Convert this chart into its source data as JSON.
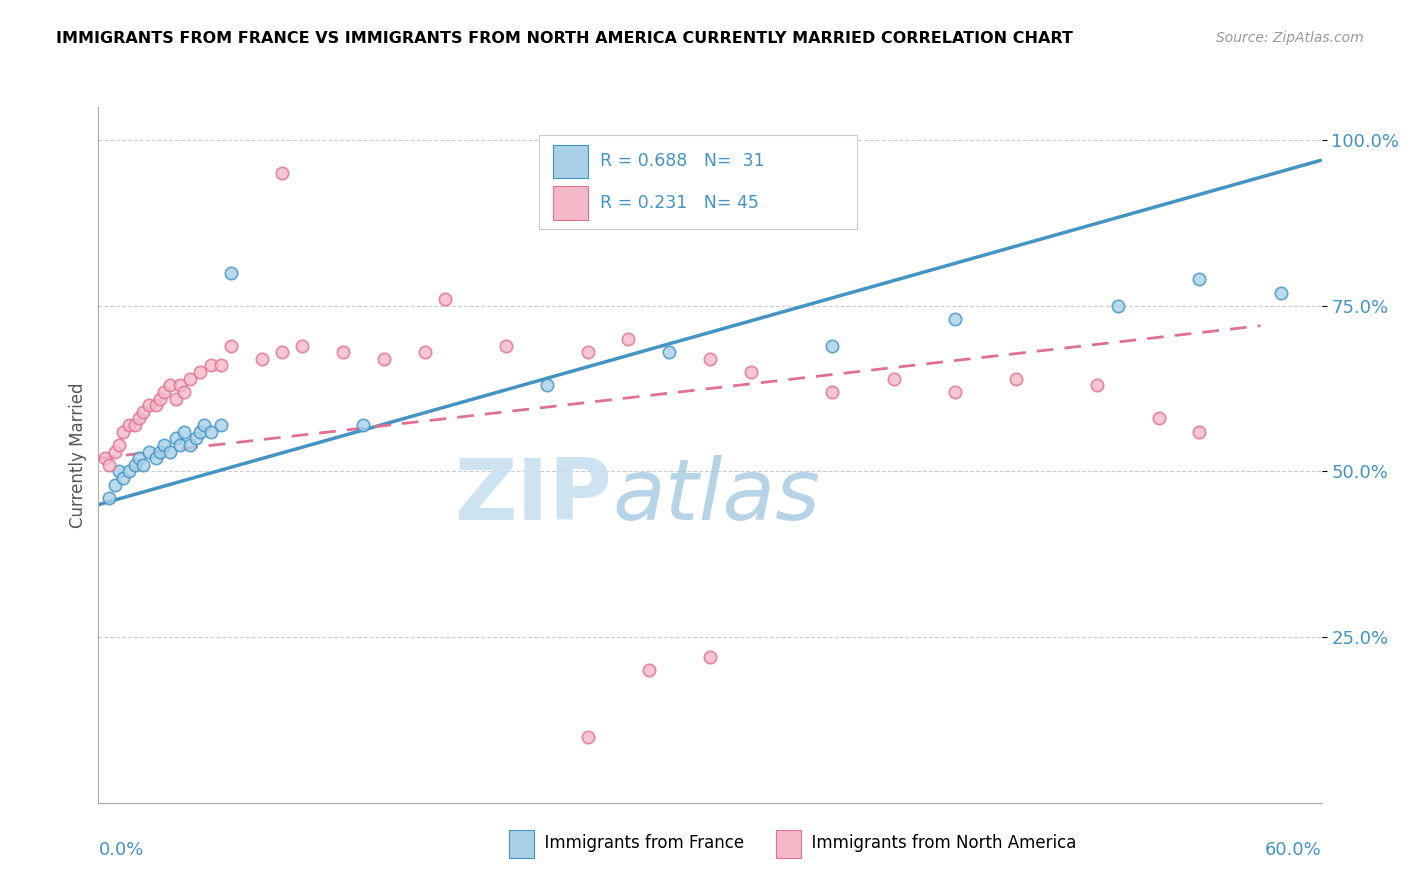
{
  "title": "IMMIGRANTS FROM FRANCE VS IMMIGRANTS FROM NORTH AMERICA CURRENTLY MARRIED CORRELATION CHART",
  "source": "Source: ZipAtlas.com",
  "ylabel": "Currently Married",
  "legend_blue_r": "R = 0.688",
  "legend_blue_n": "N=  31",
  "legend_pink_r": "R = 0.231",
  "legend_pink_n": "N= 45",
  "legend_label_blue": "Immigrants from France",
  "legend_label_pink": "Immigrants from North America",
  "blue_color": "#a8d0e8",
  "pink_color": "#f4b8c8",
  "line_blue": "#4393c3",
  "line_pink": "#e07090",
  "text_blue": "#4393c3",
  "watermark_zip": "ZIP",
  "watermark_atlas": "atlas",
  "blue_scatter_x": [
    0.005,
    0.008,
    0.01,
    0.012,
    0.015,
    0.018,
    0.02,
    0.022,
    0.025,
    0.028,
    0.03,
    0.032,
    0.035,
    0.038,
    0.04,
    0.042,
    0.045,
    0.048,
    0.05,
    0.052,
    0.055,
    0.06,
    0.065,
    0.13,
    0.22,
    0.28,
    0.36,
    0.42,
    0.5,
    0.54,
    0.58
  ],
  "blue_scatter_y": [
    0.46,
    0.48,
    0.5,
    0.49,
    0.5,
    0.51,
    0.52,
    0.51,
    0.53,
    0.52,
    0.53,
    0.54,
    0.53,
    0.55,
    0.54,
    0.56,
    0.54,
    0.55,
    0.56,
    0.57,
    0.56,
    0.57,
    0.8,
    0.57,
    0.63,
    0.68,
    0.69,
    0.73,
    0.75,
    0.79,
    0.77
  ],
  "pink_scatter_x": [
    0.003,
    0.005,
    0.008,
    0.01,
    0.012,
    0.015,
    0.018,
    0.02,
    0.022,
    0.025,
    0.028,
    0.03,
    0.032,
    0.035,
    0.038,
    0.04,
    0.042,
    0.045,
    0.05,
    0.055,
    0.06,
    0.065,
    0.08,
    0.09,
    0.1,
    0.12,
    0.14,
    0.16,
    0.17,
    0.2,
    0.24,
    0.26,
    0.3,
    0.32,
    0.36,
    0.39,
    0.42,
    0.45,
    0.49,
    0.52,
    0.54,
    0.09,
    0.27,
    0.3,
    0.24
  ],
  "pink_scatter_y": [
    0.52,
    0.51,
    0.53,
    0.54,
    0.56,
    0.57,
    0.57,
    0.58,
    0.59,
    0.6,
    0.6,
    0.61,
    0.62,
    0.63,
    0.61,
    0.63,
    0.62,
    0.64,
    0.65,
    0.66,
    0.66,
    0.69,
    0.67,
    0.68,
    0.69,
    0.68,
    0.67,
    0.68,
    0.76,
    0.69,
    0.68,
    0.7,
    0.67,
    0.65,
    0.62,
    0.64,
    0.62,
    0.64,
    0.63,
    0.58,
    0.56,
    0.95,
    0.2,
    0.22,
    0.1
  ],
  "blue_line_x0": 0.0,
  "blue_line_x1": 0.6,
  "blue_line_y0": 0.45,
  "blue_line_y1": 0.97,
  "pink_line_x0": 0.0,
  "pink_line_x1": 0.57,
  "pink_line_y0": 0.52,
  "pink_line_y1": 0.72,
  "xmin": 0.0,
  "xmax": 0.6,
  "ymin": 0.0,
  "ymax": 1.05,
  "yticks": [
    0.25,
    0.5,
    0.75,
    1.0
  ],
  "ytick_labels": [
    "25.0%",
    "50.0%",
    "75.0%",
    "100.0%"
  ]
}
